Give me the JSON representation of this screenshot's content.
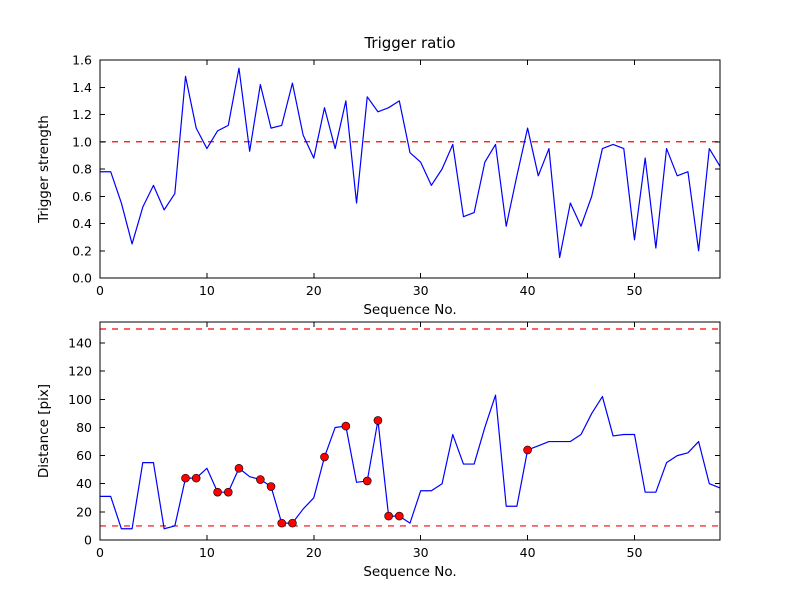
{
  "figure": {
    "background": "#ffffff",
    "axes_background": "#ffffff",
    "axis_color": "#000000",
    "series_color": "#0000ff",
    "threshold_color": "#ff0000",
    "marker_fill": "#ff0000",
    "marker_edge": "#000000",
    "text_color": "#000000"
  },
  "chart_data": [
    {
      "type": "line",
      "title": "Trigger ratio",
      "xlabel": "Sequence No.",
      "ylabel": "Trigger strength",
      "xlim": [
        0,
        58
      ],
      "ylim": [
        0.0,
        1.6
      ],
      "xticks": [
        0,
        10,
        20,
        30,
        40,
        50
      ],
      "xtick_labels": [
        "0",
        "10",
        "20",
        "30",
        "40",
        "50"
      ],
      "yticks": [
        0.0,
        0.2,
        0.4,
        0.6,
        0.8,
        1.0,
        1.2,
        1.4,
        1.6
      ],
      "ytick_labels": [
        "0.0",
        "0.2",
        "0.4",
        "0.6",
        "0.8",
        "1.0",
        "1.2",
        "1.4",
        "1.6"
      ],
      "grid": false,
      "legend": null,
      "threshold_lines": [
        1.0
      ],
      "x": [
        0,
        1,
        2,
        3,
        4,
        5,
        6,
        7,
        8,
        9,
        10,
        11,
        12,
        13,
        14,
        15,
        16,
        17,
        18,
        19,
        20,
        21,
        22,
        23,
        24,
        25,
        26,
        27,
        28,
        29,
        30,
        31,
        32,
        33,
        34,
        35,
        36,
        37,
        38,
        39,
        40,
        41,
        42,
        43,
        44,
        45,
        46,
        47,
        48,
        49,
        50,
        51,
        52,
        53,
        54,
        55,
        56,
        57,
        58
      ],
      "y": [
        0.78,
        0.78,
        0.55,
        0.25,
        0.52,
        0.68,
        0.5,
        0.62,
        1.48,
        1.1,
        0.95,
        1.08,
        1.12,
        1.54,
        0.93,
        1.42,
        1.1,
        1.12,
        1.43,
        1.05,
        0.88,
        1.25,
        0.95,
        1.3,
        0.55,
        1.33,
        1.22,
        1.25,
        1.3,
        0.92,
        0.85,
        0.68,
        0.8,
        0.98,
        0.45,
        0.48,
        0.85,
        0.98,
        0.38,
        0.75,
        1.1,
        0.75,
        0.95,
        0.15,
        0.55,
        0.38,
        0.6,
        0.95,
        0.98,
        0.95,
        0.28,
        0.88,
        0.22,
        0.95,
        0.75,
        0.78,
        0.2,
        0.95,
        0.82
      ],
      "marker_x": [],
      "marker_y": []
    },
    {
      "type": "line",
      "title": "",
      "xlabel": "Sequence No.",
      "ylabel": "Distance [pix]",
      "xlim": [
        0,
        58
      ],
      "ylim": [
        0,
        155
      ],
      "xticks": [
        0,
        10,
        20,
        30,
        40,
        50
      ],
      "xtick_labels": [
        "0",
        "10",
        "20",
        "30",
        "40",
        "50"
      ],
      "yticks": [
        0,
        20,
        40,
        60,
        80,
        100,
        120,
        140
      ],
      "ytick_labels": [
        "0",
        "20",
        "40",
        "60",
        "80",
        "100",
        "120",
        "140"
      ],
      "grid": false,
      "legend": null,
      "threshold_lines": [
        10,
        150
      ],
      "x": [
        0,
        1,
        2,
        3,
        4,
        5,
        6,
        7,
        8,
        9,
        10,
        11,
        12,
        13,
        14,
        15,
        16,
        17,
        18,
        19,
        20,
        21,
        22,
        23,
        24,
        25,
        26,
        27,
        28,
        29,
        30,
        31,
        32,
        33,
        34,
        35,
        36,
        37,
        38,
        39,
        40,
        41,
        42,
        43,
        44,
        45,
        46,
        47,
        48,
        49,
        50,
        51,
        52,
        53,
        54,
        55,
        56,
        57,
        58
      ],
      "y": [
        31,
        31,
        8,
        8,
        55,
        55,
        8,
        10,
        44,
        44,
        51,
        34,
        34,
        51,
        45,
        43,
        38,
        12,
        12,
        22,
        30,
        59,
        80,
        81,
        41,
        42,
        85,
        17,
        17,
        12,
        35,
        35,
        40,
        75,
        54,
        54,
        80,
        103,
        24,
        24,
        64,
        67,
        70,
        70,
        70,
        75,
        90,
        102,
        74,
        75,
        75,
        34,
        34,
        55,
        60,
        62,
        70,
        40,
        37
      ],
      "marker_x": [
        8,
        9,
        11,
        12,
        13,
        15,
        16,
        17,
        18,
        21,
        23,
        25,
        26,
        27,
        28,
        40
      ],
      "marker_y": [
        44,
        44,
        34,
        34,
        51,
        43,
        38,
        12,
        12,
        59,
        81,
        42,
        85,
        17,
        17,
        64
      ]
    }
  ]
}
